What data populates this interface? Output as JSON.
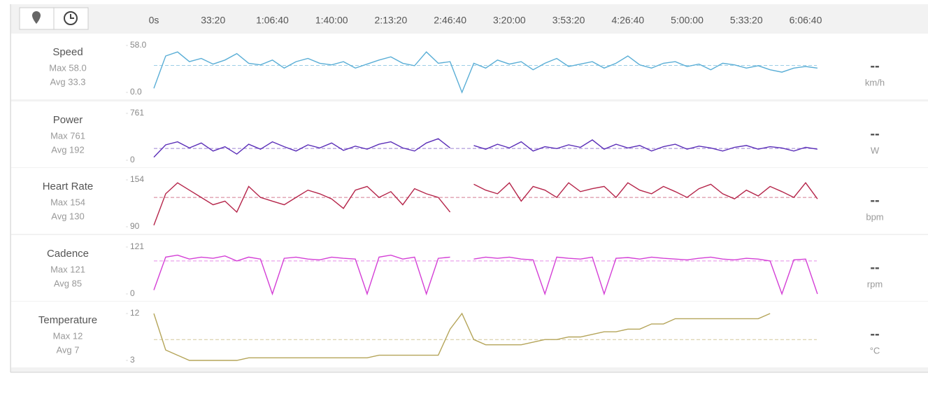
{
  "chart_data": {
    "type": "line",
    "xlim": [
      0,
      22400
    ],
    "xticks": [
      {
        "value": 0,
        "label": "0s"
      },
      {
        "value": 2000,
        "label": "33:20"
      },
      {
        "value": 4000,
        "label": "1:06:40"
      },
      {
        "value": 6000,
        "label": "1:40:00"
      },
      {
        "value": 8000,
        "label": "2:13:20"
      },
      {
        "value": 10000,
        "label": "2:46:40"
      },
      {
        "value": 12000,
        "label": "3:20:00"
      },
      {
        "value": 14000,
        "label": "3:53:20"
      },
      {
        "value": 16000,
        "label": "4:26:40"
      },
      {
        "value": 18000,
        "label": "5:00:00"
      },
      {
        "value": 20000,
        "label": "5:33:20"
      },
      {
        "value": 22000,
        "label": "6:06:40"
      }
    ],
    "x": [
      0,
      400,
      800,
      1200,
      1600,
      2000,
      2400,
      2800,
      3200,
      3600,
      4000,
      4400,
      4800,
      5200,
      5600,
      6000,
      6400,
      6800,
      7200,
      7600,
      8000,
      8400,
      8800,
      9200,
      9600,
      10000,
      10400,
      10800,
      11200,
      11600,
      12000,
      12400,
      12800,
      13200,
      13600,
      14000,
      14400,
      14800,
      15200,
      15600,
      16000,
      16400,
      16800,
      17200,
      17600,
      18000,
      18400,
      18800,
      19200,
      19600,
      20000,
      20400,
      20800,
      21200,
      21600,
      22000,
      22400
    ],
    "panels": [
      {
        "name": "Speed",
        "max_label": "Max 58.0",
        "avg_label": "Avg 33.3",
        "avg": 33.3,
        "current": "--",
        "unit": "km/h",
        "color": "#5aaed6",
        "ylim": [
          0,
          58
        ],
        "yticks": [
          {
            "value": 0,
            "label": "0.0"
          },
          {
            "value": 58,
            "label": "58.0"
          }
        ],
        "values": [
          5,
          45,
          50,
          38,
          42,
          35,
          40,
          48,
          36,
          34,
          40,
          30,
          38,
          42,
          36,
          34,
          38,
          30,
          35,
          40,
          44,
          36,
          33,
          50,
          36,
          38,
          0,
          36,
          30,
          40,
          35,
          38,
          28,
          36,
          42,
          32,
          35,
          38,
          30,
          36,
          45,
          34,
          30,
          36,
          38,
          32,
          35,
          28,
          36,
          34,
          30,
          33,
          28,
          25,
          30,
          32,
          30
        ]
      },
      {
        "name": "Power",
        "max_label": "Max 761",
        "avg_label": "Avg 192",
        "avg": 192,
        "current": "--",
        "unit": "W",
        "color": "#5b2fb8",
        "ylim": [
          0,
          761
        ],
        "yticks": [
          0,
          761
        ],
        "values": [
          50,
          250,
          300,
          200,
          280,
          150,
          220,
          100,
          260,
          180,
          300,
          220,
          150,
          250,
          200,
          280,
          160,
          230,
          180,
          260,
          300,
          200,
          150,
          280,
          350,
          200,
          null,
          240,
          180,
          260,
          200,
          300,
          150,
          220,
          190,
          250,
          210,
          330,
          180,
          260,
          200,
          240,
          150,
          220,
          260,
          180,
          230,
          200,
          150,
          210,
          240,
          180,
          220,
          200,
          150,
          210,
          180
        ]
      },
      {
        "name": "Heart Rate",
        "max_label": "Max 154",
        "avg_label": "Avg 130",
        "avg": 130,
        "current": "--",
        "unit": "bpm",
        "color": "#b5254a",
        "ylim": [
          90,
          154
        ],
        "yticks": [
          90,
          154
        ],
        "values": [
          92,
          135,
          150,
          140,
          130,
          120,
          125,
          110,
          145,
          130,
          125,
          120,
          130,
          140,
          135,
          128,
          115,
          140,
          145,
          130,
          138,
          120,
          142,
          135,
          130,
          110,
          null,
          148,
          140,
          135,
          150,
          125,
          145,
          140,
          130,
          150,
          138,
          142,
          145,
          130,
          150,
          140,
          135,
          145,
          138,
          130,
          142,
          148,
          135,
          128,
          140,
          132,
          145,
          138,
          130,
          150,
          128
        ]
      },
      {
        "name": "Cadence",
        "max_label": "Max 121",
        "avg_label": "Avg 85",
        "avg": 85,
        "current": "--",
        "unit": "rpm",
        "color": "#d43fd6",
        "ylim": [
          0,
          121
        ],
        "yticks": [
          0,
          121
        ],
        "values": [
          10,
          95,
          100,
          90,
          95,
          92,
          98,
          85,
          95,
          90,
          0,
          92,
          95,
          90,
          88,
          95,
          92,
          90,
          0,
          95,
          100,
          90,
          95,
          0,
          92,
          95,
          null,
          90,
          95,
          92,
          95,
          90,
          88,
          0,
          95,
          92,
          90,
          95,
          0,
          92,
          94,
          90,
          95,
          92,
          90,
          88,
          92,
          95,
          90,
          88,
          92,
          90,
          85,
          0,
          88,
          90,
          0
        ]
      },
      {
        "name": "Temperature",
        "max_label": "Max 12",
        "avg_label": "Avg 7",
        "avg": 7,
        "current": "--",
        "unit": "°C",
        "color": "#b5a55a",
        "ylim": [
          3,
          12
        ],
        "yticks": [
          3,
          12
        ],
        "values": [
          12,
          5,
          4,
          3,
          3,
          3,
          3,
          3,
          3.5,
          3.5,
          3.5,
          3.5,
          3.5,
          3.5,
          3.5,
          3.5,
          3.5,
          3.5,
          3.5,
          4,
          4,
          4,
          4,
          4,
          4,
          9,
          12,
          7,
          6,
          6,
          6,
          6,
          6.5,
          7,
          7,
          7.5,
          7.5,
          8,
          8.5,
          8.5,
          9,
          9,
          10,
          10,
          11,
          11,
          11,
          11,
          11,
          11,
          11,
          11,
          12,
          null,
          null,
          null,
          null
        ]
      }
    ]
  }
}
